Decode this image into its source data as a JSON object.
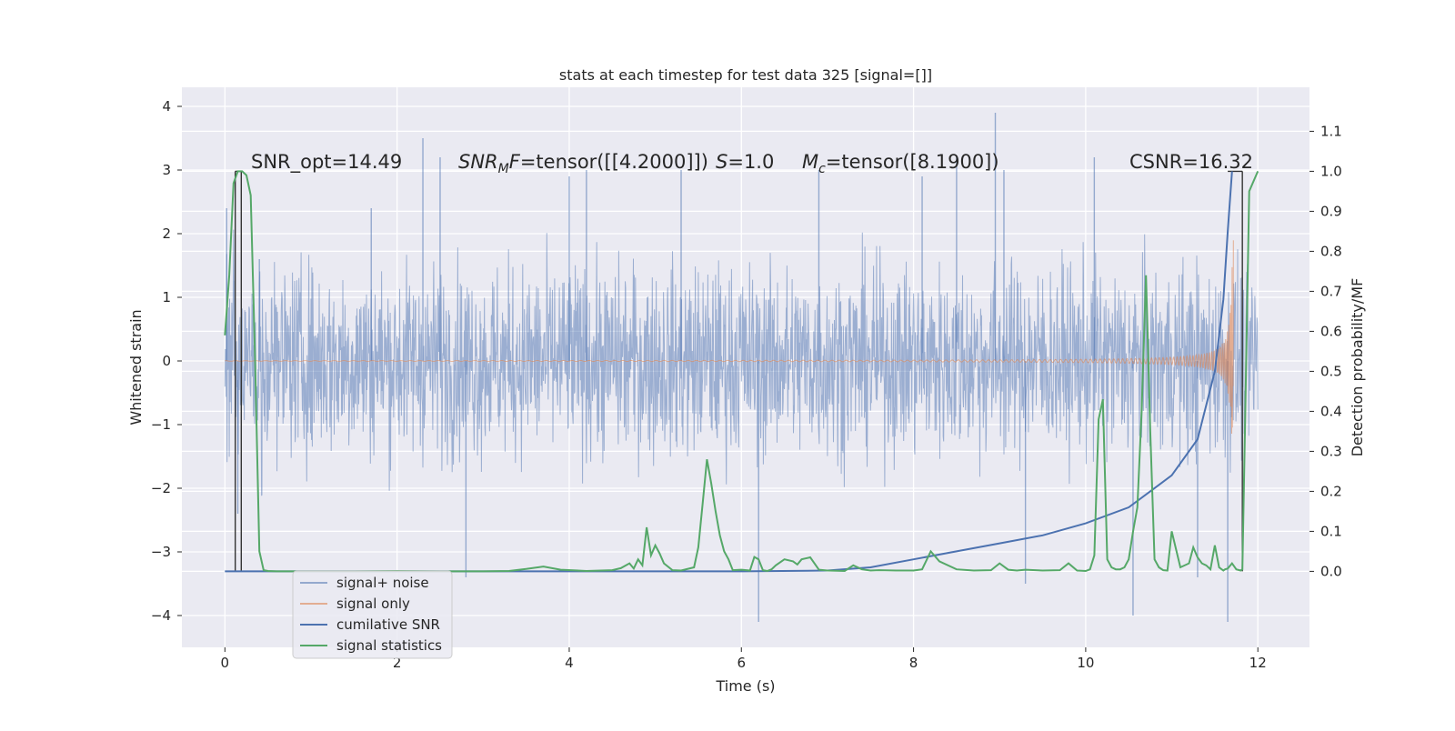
{
  "chart_data": {
    "type": "line",
    "title": "stats at each timestep for test data 325 [signal=[]]",
    "xlabel": "Time (s)",
    "ylabel": "Whitened strain",
    "y2label": "Detection probability/MF",
    "xlim": [
      -0.5,
      12.6
    ],
    "ylim": [
      -4.5,
      4.3
    ],
    "y2lim": [
      -0.19,
      1.21
    ],
    "x_ticks": [
      0,
      2,
      4,
      6,
      8,
      10,
      12
    ],
    "y_ticks": [
      -4,
      -3,
      -2,
      -1,
      0,
      1,
      2,
      3,
      4
    ],
    "y2_ticks": [
      0.0,
      0.1,
      0.2,
      0.3,
      0.4,
      0.5,
      0.6,
      0.7,
      0.8,
      0.9,
      1.0,
      1.1
    ],
    "grid": true,
    "annotations": [
      "SNR_opt=14.49",
      "SNR_MF=tensor([[4.2000]])",
      "S=1.0",
      "M_c=tensor([8.1900])",
      "CSNR=16.32"
    ],
    "legend": {
      "placement": "lower-left",
      "entries": [
        "signal+ noise",
        "signal only",
        "cumilative SNR",
        "signal statistics"
      ]
    },
    "series": [
      {
        "name": "signal+ noise",
        "color": "#4c72b0",
        "description_values": "noise band approx ±1.3 strain with spikes up to ±3.9 over 0–12 s",
        "spikes": [
          [
            0.02,
            2.4
          ],
          [
            0.15,
            -2.4
          ],
          [
            0.4,
            1.6
          ],
          [
            1.7,
            2.4
          ],
          [
            2.3,
            3.5
          ],
          [
            2.5,
            3.2
          ],
          [
            2.8,
            -3.4
          ],
          [
            4.0,
            2.9
          ],
          [
            4.2,
            3.0
          ],
          [
            5.3,
            3.0
          ],
          [
            6.2,
            -4.1
          ],
          [
            6.9,
            3.0
          ],
          [
            8.1,
            2.9
          ],
          [
            8.5,
            3.2
          ],
          [
            8.95,
            3.9
          ],
          [
            9.05,
            3.0
          ],
          [
            9.3,
            -3.5
          ],
          [
            10.1,
            3.2
          ],
          [
            10.55,
            -4.0
          ],
          [
            11.3,
            -3.4
          ],
          [
            11.65,
            -4.1
          ]
        ]
      },
      {
        "name": "signal only",
        "color": "#dd8452",
        "description_values": "chirp, amplitude growing from ~0.02 to ~3 near 11.7 s"
      },
      {
        "name": "cumilative SNR",
        "color": "#4c72b0",
        "axis": "y2",
        "x": [
          0,
          6.0,
          7.0,
          7.5,
          8.0,
          8.5,
          9.0,
          9.5,
          10.0,
          10.5,
          11.0,
          11.3,
          11.5,
          11.6,
          11.65,
          11.7
        ],
        "y": [
          0.0,
          0.0,
          0.002,
          0.01,
          0.03,
          0.05,
          0.07,
          0.09,
          0.12,
          0.16,
          0.24,
          0.33,
          0.5,
          0.68,
          0.85,
          1.0
        ]
      },
      {
        "name": "signal statistics",
        "color": "#55a868",
        "axis": "y2",
        "x": [
          0.0,
          0.05,
          0.1,
          0.15,
          0.2,
          0.25,
          0.3,
          0.35,
          0.4,
          0.45,
          0.5,
          0.6,
          1.0,
          1.5,
          2.0,
          2.5,
          3.0,
          3.3,
          3.5,
          3.7,
          3.9,
          4.2,
          4.5,
          4.6,
          4.7,
          4.75,
          4.8,
          4.85,
          4.9,
          4.95,
          5.0,
          5.05,
          5.1,
          5.2,
          5.3,
          5.45,
          5.5,
          5.55,
          5.6,
          5.65,
          5.7,
          5.75,
          5.8,
          5.85,
          5.9,
          6.0,
          6.1,
          6.15,
          6.2,
          6.25,
          6.3,
          6.35,
          6.4,
          6.5,
          6.6,
          6.65,
          6.7,
          6.8,
          6.9,
          7.0,
          7.2,
          7.3,
          7.4,
          7.5,
          7.6,
          7.8,
          8.0,
          8.1,
          8.2,
          8.3,
          8.5,
          8.7,
          8.9,
          9.0,
          9.1,
          9.2,
          9.3,
          9.5,
          9.7,
          9.8,
          9.9,
          10.0,
          10.05,
          10.1,
          10.15,
          10.2,
          10.25,
          10.3,
          10.35,
          10.4,
          10.45,
          10.5,
          10.55,
          10.6,
          10.65,
          10.7,
          10.75,
          10.8,
          10.85,
          10.9,
          10.95,
          11.0,
          11.1,
          11.2,
          11.25,
          11.3,
          11.35,
          11.4,
          11.45,
          11.5,
          11.55,
          11.6,
          11.62,
          11.65,
          11.7,
          11.75,
          11.8,
          11.82,
          11.85,
          11.9,
          12.0
        ],
        "y": [
          0.59,
          0.74,
          0.97,
          1.0,
          1.0,
          0.99,
          0.94,
          0.53,
          0.05,
          0.003,
          0.001,
          0.0,
          0.0,
          0.0,
          0.001,
          0.0,
          0.0,
          0.001,
          0.006,
          0.012,
          0.004,
          0.001,
          0.003,
          0.008,
          0.02,
          0.007,
          0.03,
          0.015,
          0.11,
          0.04,
          0.065,
          0.045,
          0.02,
          0.003,
          0.002,
          0.01,
          0.06,
          0.17,
          0.28,
          0.22,
          0.15,
          0.09,
          0.05,
          0.03,
          0.003,
          0.004,
          0.002,
          0.036,
          0.03,
          0.003,
          0.001,
          0.005,
          0.015,
          0.03,
          0.025,
          0.017,
          0.03,
          0.035,
          0.004,
          0.002,
          0.001,
          0.015,
          0.005,
          0.002,
          0.003,
          0.002,
          0.002,
          0.005,
          0.05,
          0.025,
          0.005,
          0.002,
          0.003,
          0.02,
          0.004,
          0.002,
          0.004,
          0.002,
          0.003,
          0.02,
          0.002,
          0.001,
          0.005,
          0.04,
          0.38,
          0.43,
          0.03,
          0.01,
          0.005,
          0.005,
          0.01,
          0.03,
          0.1,
          0.16,
          0.4,
          0.74,
          0.35,
          0.03,
          0.01,
          0.003,
          0.002,
          0.1,
          0.01,
          0.02,
          0.06,
          0.035,
          0.02,
          0.015,
          0.005,
          0.065,
          0.01,
          0.002,
          0.005,
          0.007,
          0.02,
          0.005,
          0.002,
          0.005,
          0.35,
          0.95,
          1.0
        ]
      }
    ]
  }
}
